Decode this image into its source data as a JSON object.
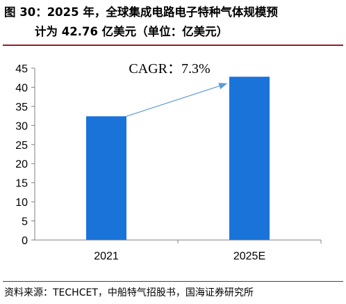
{
  "header": {
    "title_line1": "图 30：2025 年，全球集成电路电子特种气体规模预",
    "title_line2": "计为 42.76 亿美元（单位：亿美元）"
  },
  "chart_data": {
    "type": "bar",
    "categories": [
      "2021",
      "2025E"
    ],
    "values": [
      32.4,
      42.76
    ],
    "ylim": [
      0,
      45
    ],
    "yticks": [
      0,
      5,
      10,
      15,
      20,
      25,
      30,
      35,
      40,
      45
    ],
    "annotation": "CAGR：7.3%",
    "bar_color": "#1a73d9",
    "arrow_color": "#5b9bd5",
    "grid": false
  },
  "footer": {
    "source": "资料来源：TECHCET，中船特气招股书，国海证券研究所"
  }
}
